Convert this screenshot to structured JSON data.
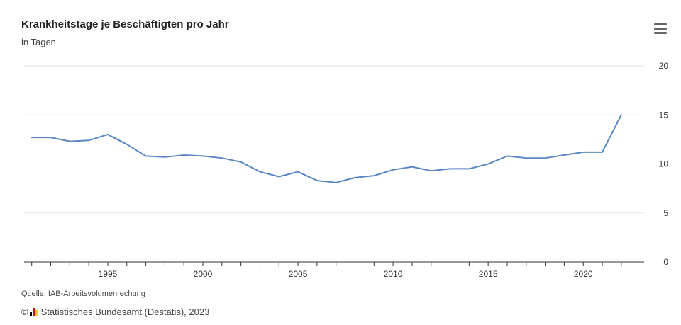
{
  "header": {
    "title": "Krankheitstage je Beschäftigten pro Jahr",
    "subtitle": "in Tagen"
  },
  "menu": {
    "icon": "hamburger-menu-icon"
  },
  "footer": {
    "source": "Quelle: IAB-Arbeitsvolumenrechung",
    "copyright_symbol": "©",
    "copyright_text": "Statistisches Bundesamt (Destatis), 2023",
    "logo_icon": "destatis-logo-icon"
  },
  "colors": {
    "line": "#5b87c3",
    "grid": "#e6e6e6",
    "axis": "#333333",
    "logo_black": "#000000",
    "logo_red": "#dd0000",
    "logo_gold": "#ffcc00"
  },
  "chart_data": {
    "type": "line",
    "title": "Krankheitstage je Beschäftigten pro Jahr",
    "subtitle": "in Tagen",
    "xlabel": "",
    "ylabel": "",
    "x": [
      1991,
      1992,
      1993,
      1994,
      1995,
      1996,
      1997,
      1998,
      1999,
      2000,
      2001,
      2002,
      2003,
      2004,
      2005,
      2006,
      2007,
      2008,
      2009,
      2010,
      2011,
      2012,
      2013,
      2014,
      2015,
      2016,
      2017,
      2018,
      2019,
      2020,
      2021,
      2022
    ],
    "series": [
      {
        "values": [
          12.7,
          12.7,
          12.3,
          12.4,
          13.0,
          12.0,
          10.8,
          10.7,
          10.9,
          10.8,
          10.6,
          10.2,
          9.2,
          8.7,
          9.2,
          8.3,
          8.1,
          8.6,
          8.8,
          9.4,
          9.7,
          9.3,
          9.5,
          9.5,
          10.0,
          10.8,
          10.6,
          10.6,
          10.9,
          11.2,
          11.2,
          15.0
        ]
      }
    ],
    "xlim": [
      1990.6,
      2023.2
    ],
    "ylim": [
      0,
      20
    ],
    "x_ticks": [
      1995,
      2000,
      2005,
      2010,
      2015,
      2020
    ],
    "y_ticks": [
      0,
      5,
      10,
      15,
      20
    ],
    "y_axis_position": "right",
    "grid": true,
    "legend": "none"
  }
}
